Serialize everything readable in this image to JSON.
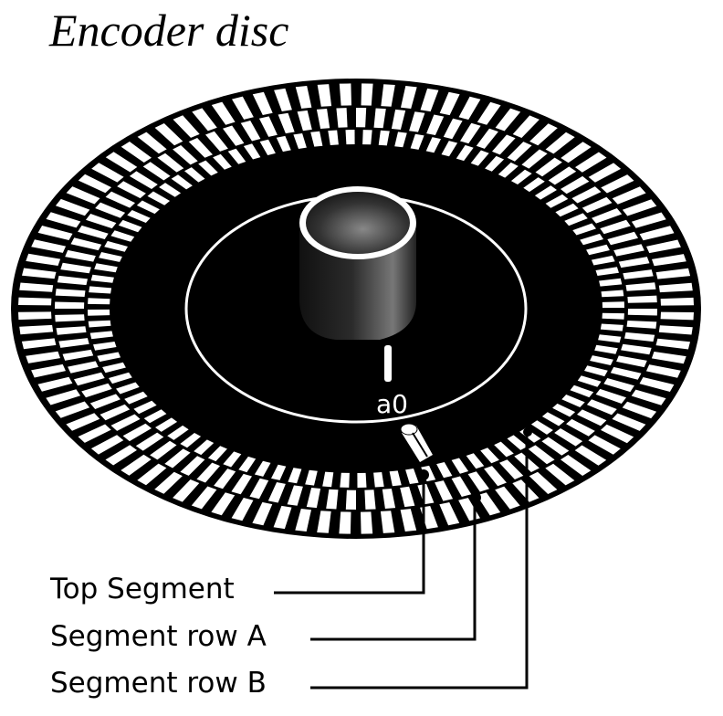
{
  "title": "Encoder disc",
  "marker_text": "a0",
  "labels": {
    "top_segment": "Top Segment",
    "segment_row_a": "Segment row A",
    "segment_row_b": "Segment row B"
  },
  "colors": {
    "ink": "#000000",
    "paper": "#ffffff"
  }
}
